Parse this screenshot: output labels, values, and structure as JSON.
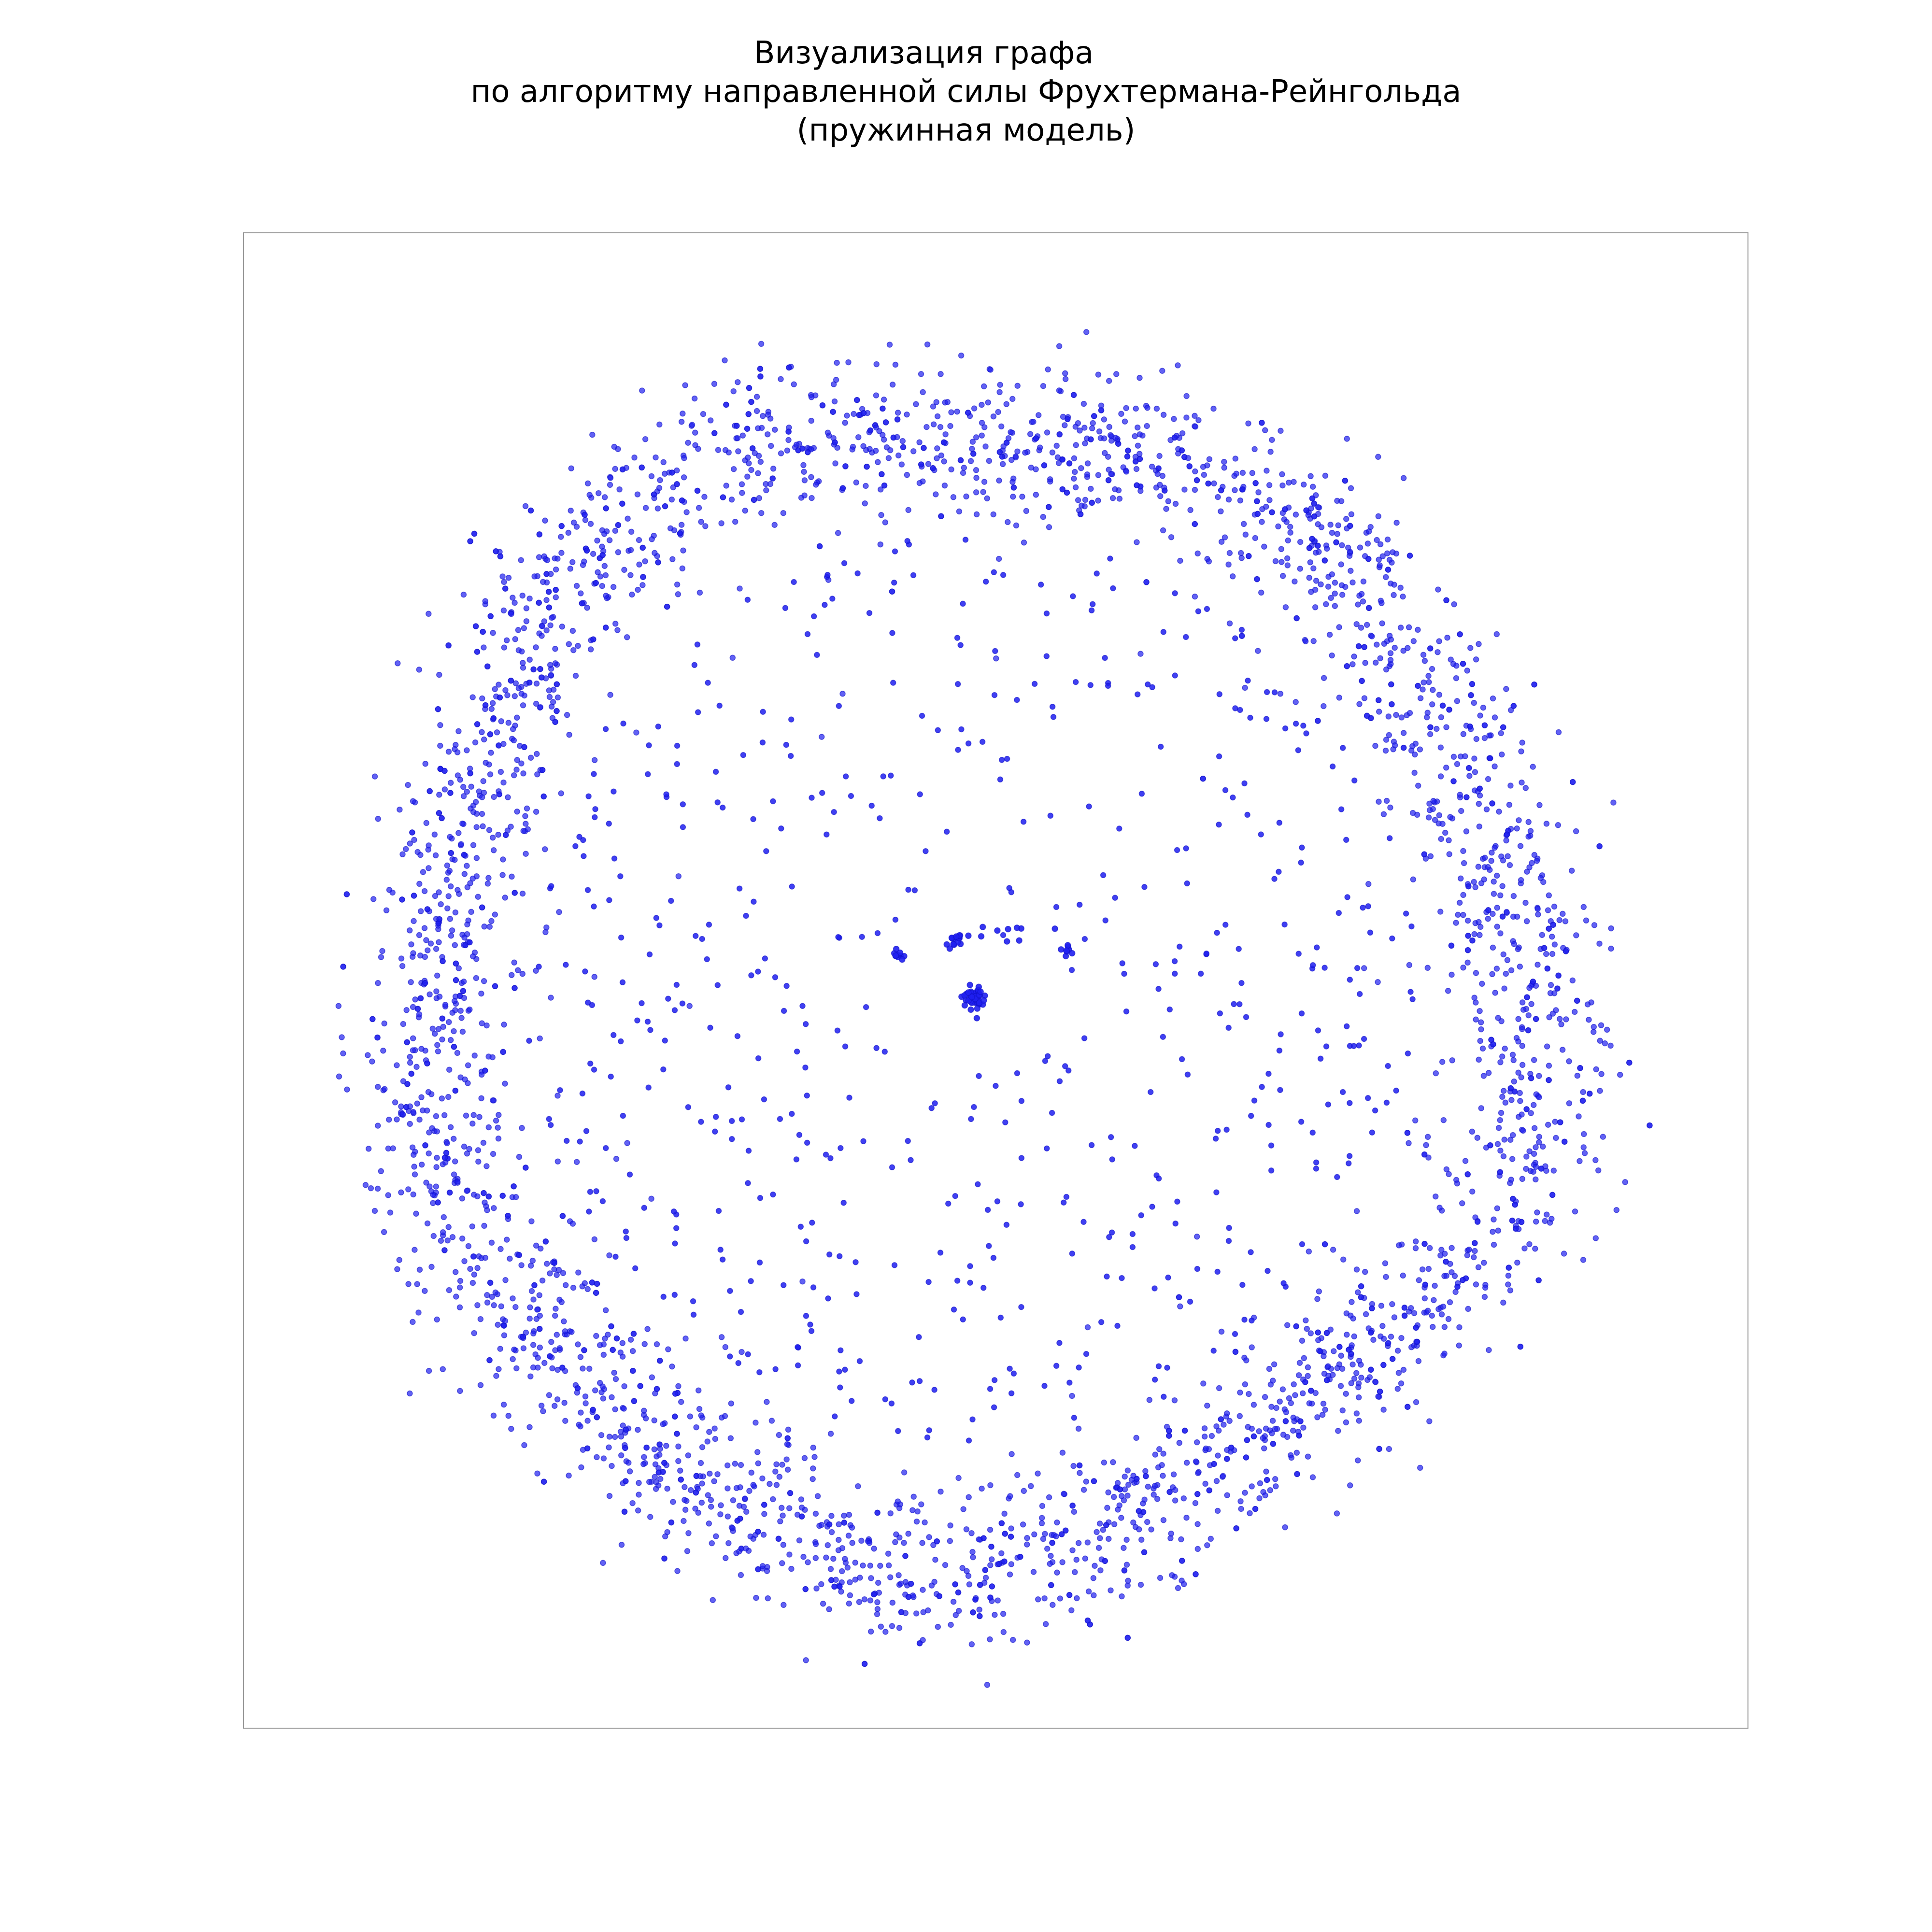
{
  "title": {
    "line1": "Визуализация графа",
    "line2": "по алгоритму направленной силы Фрухтермана-Рейнгольда",
    "line3": "(пружинная модель)"
  },
  "colors": {
    "node": "#1f1ff0",
    "node_edge": "#1010c8",
    "frame": "#999999",
    "background": "#ffffff"
  },
  "graph": {
    "layout": "spring (Fruchterman-Reingold)",
    "outer_ring_nodes": 3600,
    "inner_scattered_nodes": 520,
    "central_clusters": 5,
    "frame_visible": true,
    "axes_ticks": false
  }
}
